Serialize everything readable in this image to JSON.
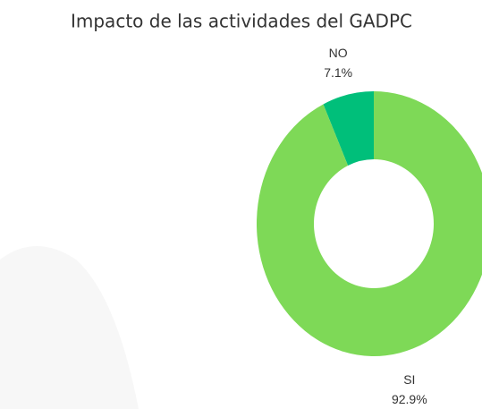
{
  "chart_data": {
    "type": "donut",
    "title": "Impacto de las actividades del GADPC",
    "categories": [
      "NO",
      "SI"
    ],
    "values": [
      7.1,
      92.9
    ],
    "value_labels": [
      "7.1%",
      "92.9%"
    ],
    "colors": [
      "#00bf7a",
      "#7ed957"
    ]
  }
}
